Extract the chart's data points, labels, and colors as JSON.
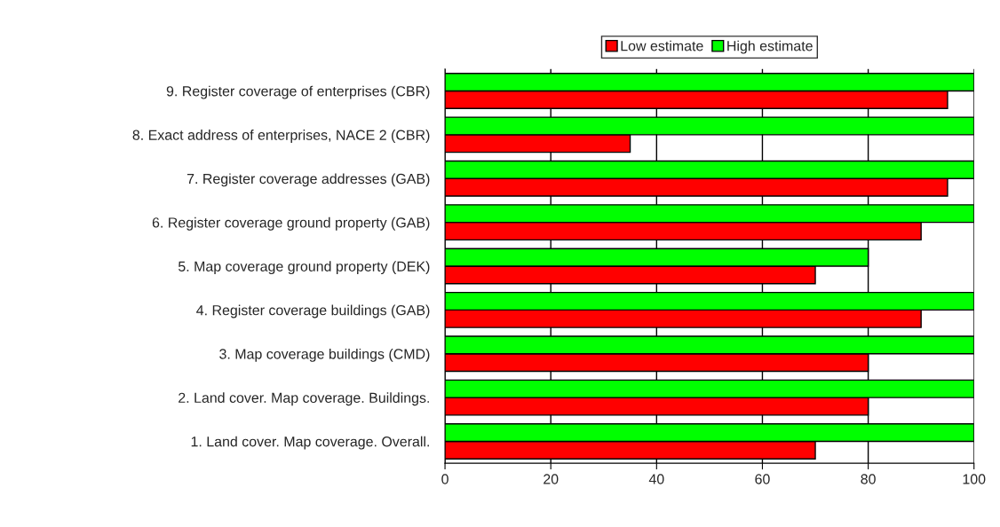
{
  "chart_data": {
    "type": "bar",
    "orientation": "horizontal",
    "categories": [
      "9. Register coverage of enterprises (CBR)",
      "8. Exact address of enterprises, NACE 2 (CBR)",
      "7. Register coverage addresses (GAB)",
      "6. Register coverage ground property (GAB)",
      "5. Map coverage ground property (DEK)",
      "4. Register coverage buildings (GAB)",
      "3. Map coverage buildings (CMD)",
      "2. Land cover. Map coverage. Buildings.",
      "1. Land cover. Map coverage. Overall."
    ],
    "series": [
      {
        "name": "Low estimate",
        "color": "#ff0000",
        "values": [
          95,
          35,
          95,
          90,
          70,
          90,
          80,
          80,
          70
        ]
      },
      {
        "name": "High estimate",
        "color": "#00ff00",
        "values": [
          100,
          100,
          100,
          100,
          80,
          100,
          100,
          100,
          100
        ]
      }
    ],
    "xlim": [
      0,
      100
    ],
    "xticks": [
      0,
      20,
      40,
      60,
      80,
      100
    ],
    "grid": "x",
    "legend": "top"
  }
}
